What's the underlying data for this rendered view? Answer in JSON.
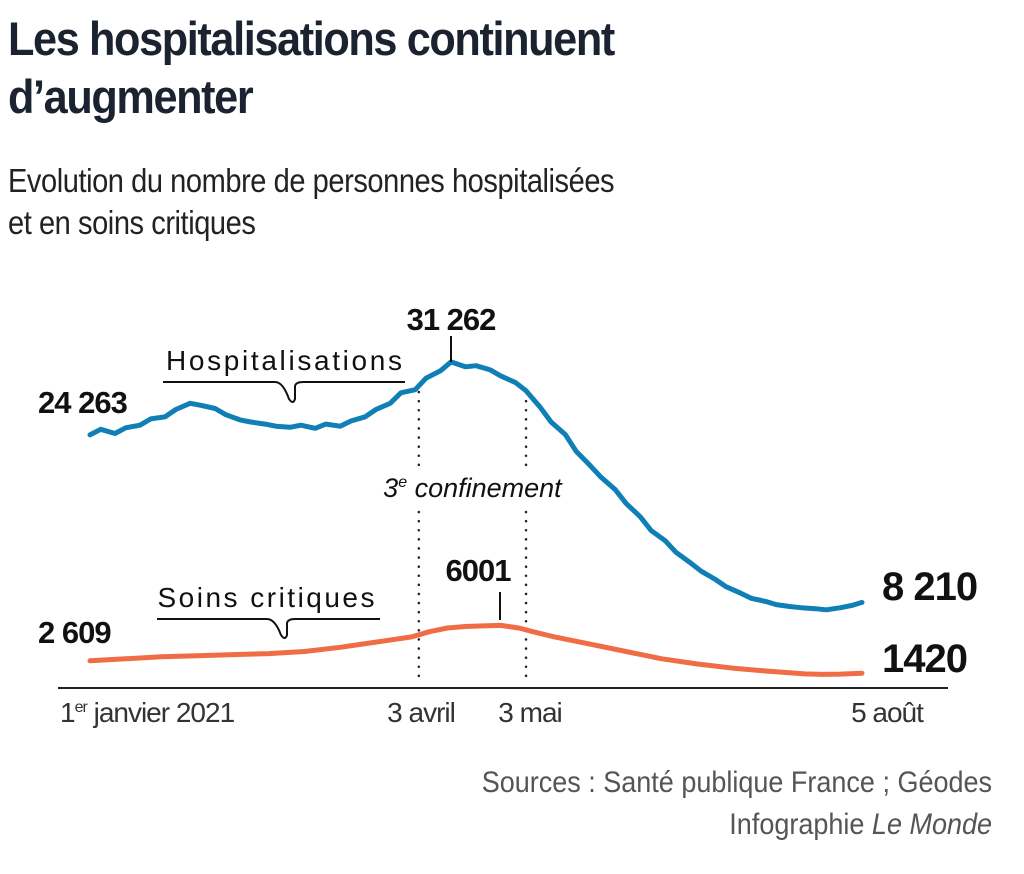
{
  "header": {
    "title_line1": "Les hospitalisations continuent",
    "title_line2": "d’augmenter",
    "subtitle_line1": "Evolution du nombre de personnes hospitalisées",
    "subtitle_line2": "et en soins critiques"
  },
  "footer": {
    "sources": "Sources : Santé publique France ; Géodes",
    "credit_prefix": "Infographie",
    "credit_brand": "Le Monde"
  },
  "colors": {
    "hospitalisations": "#0f7fb5",
    "soins_critiques": "#ef6c45",
    "axis": "#222222",
    "text": "#111111"
  },
  "chart_data": {
    "type": "line",
    "title": "Les hospitalisations continuent d’augmenter",
    "subtitle": "Evolution du nombre de personnes hospitalisées et en soins critiques",
    "xlabel": "",
    "ylabel": "",
    "x_start": "2021-01-01",
    "x_end": "2021-08-05",
    "x_unit": "days since 1 Jan 2021",
    "xlim": [
      0,
      216
    ],
    "ylim": [
      0,
      32000
    ],
    "grid": false,
    "x_ticks": [
      {
        "day": 0,
        "label_main": "janvier 2021",
        "label_prefix": "1",
        "label_sup": "er"
      },
      {
        "day": 92,
        "label_main": "3 avril"
      },
      {
        "day": 122,
        "label_main": "3 mai"
      },
      {
        "day": 216,
        "label_main": "5 août"
      }
    ],
    "annotations": {
      "period": {
        "label_prefix": "3",
        "label_sup": "e",
        "label_main": "confinement",
        "start_day": 92,
        "end_day": 122
      },
      "series_labels": [
        {
          "series": "Hospitalisations",
          "text": "Hospitalisations"
        },
        {
          "series": "Soins critiques",
          "text": "Soins critiques"
        }
      ],
      "values": [
        {
          "series": "Hospitalisations",
          "day": 0,
          "text": "24 263"
        },
        {
          "series": "Hospitalisations",
          "day": 101,
          "text": "31 262"
        },
        {
          "series": "Hospitalisations",
          "day": 216,
          "text": "8 210"
        },
        {
          "series": "Soins critiques",
          "day": 0,
          "text": "2 609"
        },
        {
          "series": "Soins critiques",
          "day": 115,
          "text": "6001"
        },
        {
          "series": "Soins critiques",
          "day": 216,
          "text": "1420"
        }
      ]
    },
    "series": [
      {
        "name": "Hospitalisations",
        "color": "#0f7fb5",
        "x": [
          0,
          3,
          7,
          10,
          14,
          17,
          21,
          24,
          28,
          31,
          35,
          38,
          42,
          45,
          49,
          52,
          56,
          59,
          63,
          66,
          70,
          73,
          77,
          80,
          84,
          87,
          91,
          94,
          98,
          101,
          105,
          108,
          112,
          115,
          119,
          122,
          126,
          129,
          133,
          136,
          140,
          143,
          147,
          150,
          154,
          157,
          161,
          164,
          168,
          171,
          175,
          178,
          182,
          185,
          189,
          192,
          196,
          199,
          203,
          206,
          210,
          213,
          216
        ],
        "values": [
          24263,
          24800,
          24400,
          24950,
          25200,
          25800,
          26000,
          26700,
          27300,
          27100,
          26800,
          26200,
          25700,
          25500,
          25300,
          25100,
          25000,
          25200,
          24900,
          25300,
          25100,
          25600,
          26000,
          26700,
          27300,
          28300,
          28600,
          29700,
          30400,
          31262,
          30800,
          30900,
          30500,
          29900,
          29300,
          28500,
          26900,
          25500,
          24300,
          22700,
          21300,
          20200,
          19000,
          17700,
          16400,
          15100,
          14100,
          13000,
          12000,
          11200,
          10400,
          9700,
          9100,
          8600,
          8300,
          8000,
          7800,
          7700,
          7600,
          7500,
          7700,
          7900,
          8210
        ]
      },
      {
        "name": "Soins critiques",
        "color": "#ef6c45",
        "x": [
          0,
          10,
          20,
          30,
          40,
          50,
          60,
          70,
          80,
          90,
          95,
          100,
          105,
          110,
          115,
          120,
          125,
          130,
          140,
          150,
          160,
          170,
          180,
          190,
          200,
          205,
          210,
          216
        ],
        "values": [
          2609,
          2800,
          3000,
          3100,
          3200,
          3300,
          3500,
          3900,
          4400,
          4900,
          5400,
          5750,
          5900,
          5950,
          6001,
          5750,
          5300,
          4900,
          4200,
          3500,
          2800,
          2300,
          1900,
          1600,
          1350,
          1300,
          1330,
          1420
        ]
      }
    ]
  }
}
